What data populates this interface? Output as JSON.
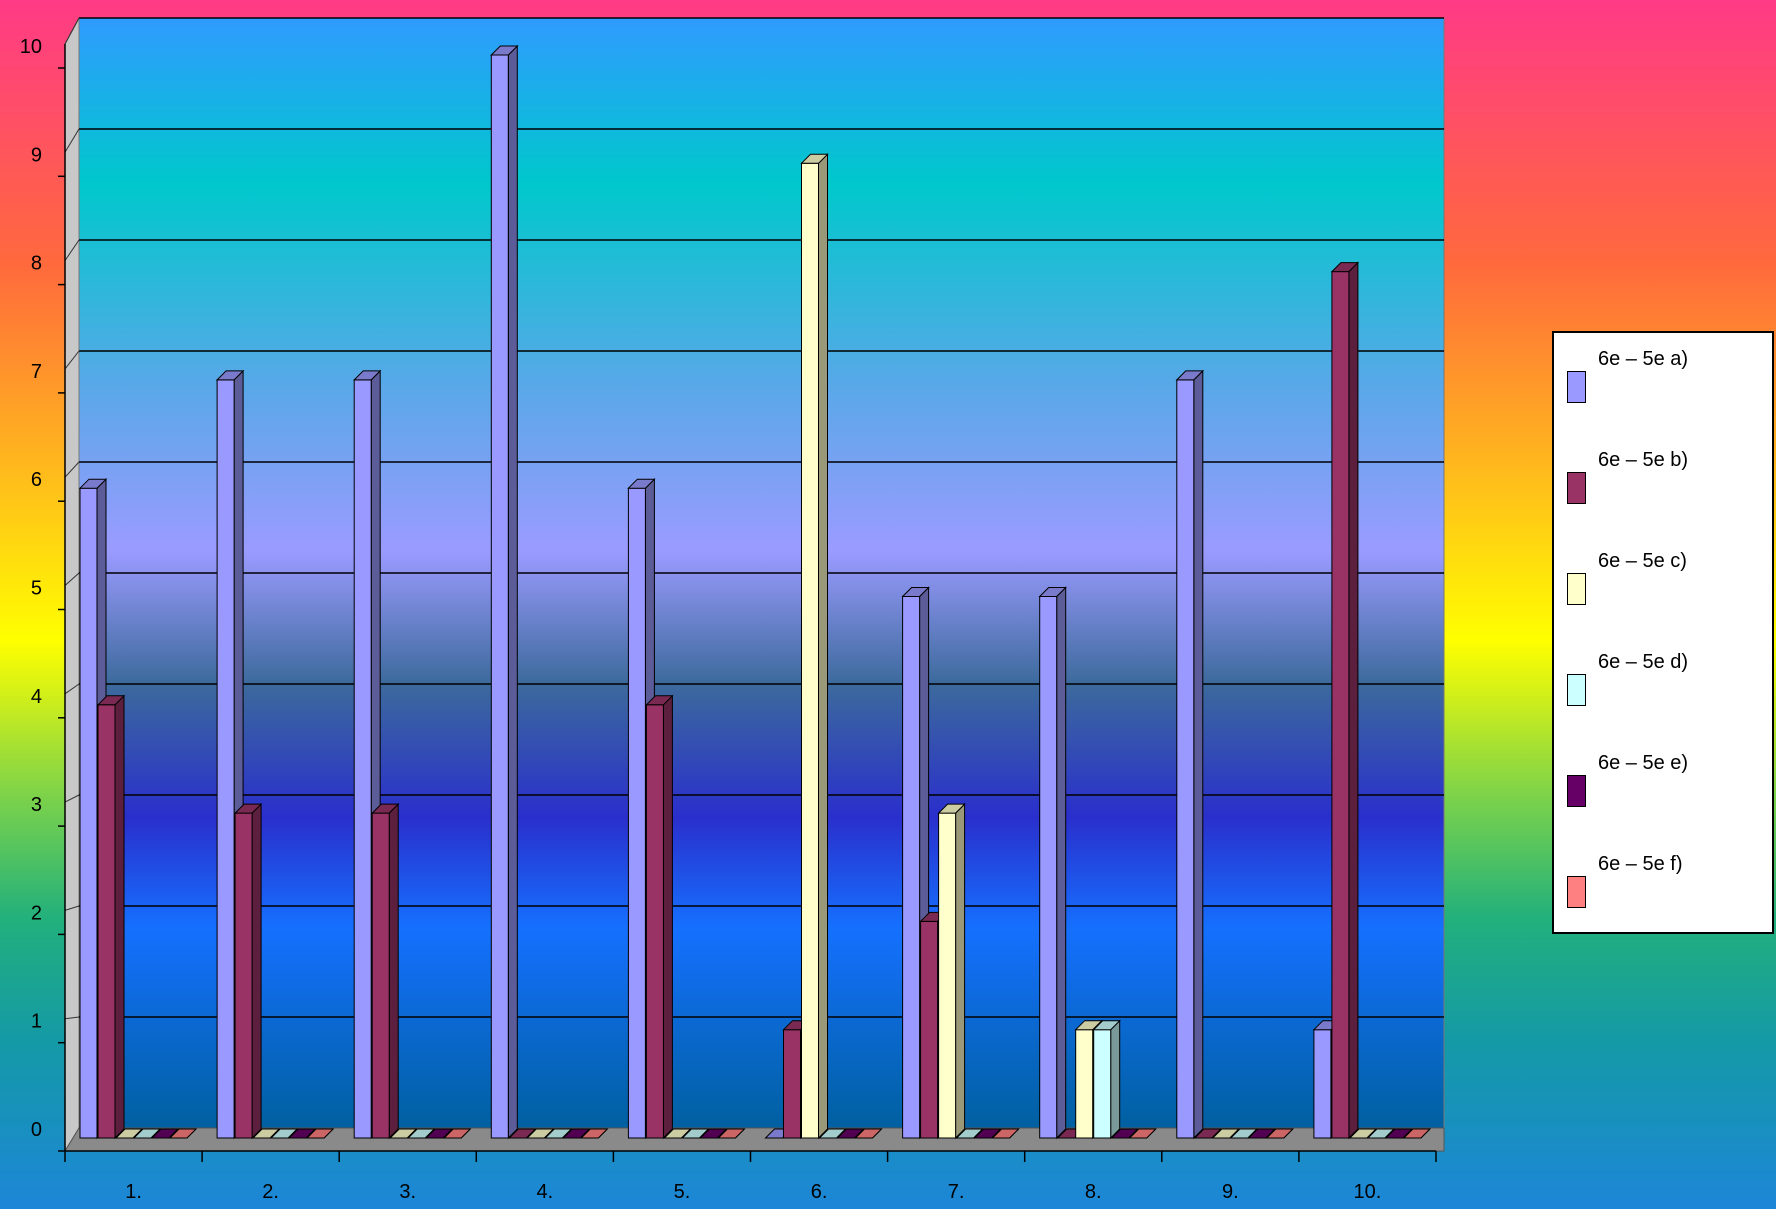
{
  "chart_data": {
    "type": "bar",
    "categories": [
      "1.",
      "2.",
      "3.",
      "4.",
      "5.",
      "6.",
      "7.",
      "8.",
      "9.",
      "10."
    ],
    "ylim": [
      0,
      10
    ],
    "yticks": [
      "0",
      "1",
      "2",
      "3",
      "4",
      "5",
      "6",
      "7",
      "8",
      "9",
      "10"
    ],
    "grid": true,
    "legend_position": "right",
    "series": [
      {
        "name": "6e – 5e a)",
        "color": "#9999ff",
        "values": [
          6,
          7,
          7,
          10,
          6,
          0,
          5,
          5,
          7,
          1
        ]
      },
      {
        "name": "6e – 5e b)",
        "color": "#993366",
        "values": [
          4,
          3,
          3,
          0,
          4,
          1,
          2,
          0,
          0,
          8
        ]
      },
      {
        "name": "6e – 5e c)",
        "color": "#ffffcc",
        "values": [
          0,
          0,
          0,
          0,
          0,
          9,
          3,
          1,
          0,
          0
        ]
      },
      {
        "name": "6e – 5e d)",
        "color": "#ccffff",
        "values": [
          0,
          0,
          0,
          0,
          0,
          0,
          0,
          1,
          0,
          0
        ]
      },
      {
        "name": "6e – 5e e)",
        "color": "#660066",
        "values": [
          0,
          0,
          0,
          0,
          0,
          0,
          0,
          0,
          0,
          0
        ]
      },
      {
        "name": "6e – 5e f)",
        "color": "#ff8080",
        "values": [
          0,
          0,
          0,
          0,
          0,
          0,
          0,
          0,
          0,
          0
        ]
      }
    ]
  }
}
